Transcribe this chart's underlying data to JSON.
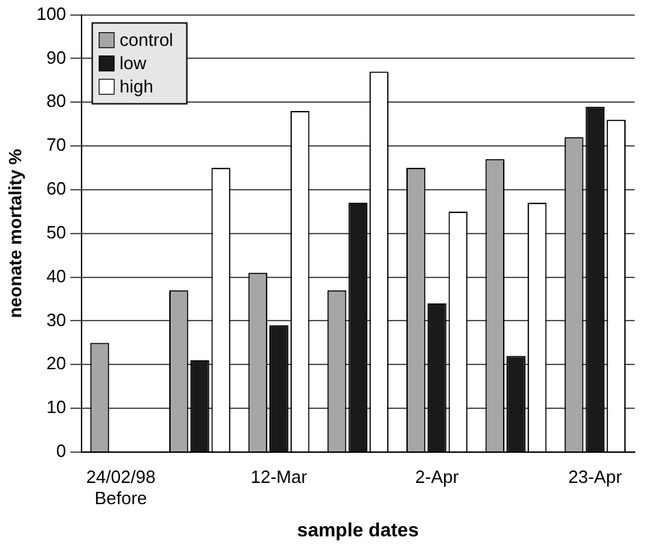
{
  "chart_data": {
    "type": "bar",
    "xlabel": "sample dates",
    "ylabel": "neonate mortality %",
    "categories": [
      "24/02/98\nBefore",
      null,
      "12-Mar",
      null,
      "2-Apr",
      null,
      "23-Apr"
    ],
    "series": [
      {
        "name": "control",
        "color": "#a6a6a6",
        "values": [
          25,
          37,
          41,
          37,
          65,
          67,
          72
        ]
      },
      {
        "name": "low",
        "color": "#1a1a1a",
        "values": [
          null,
          21,
          29,
          57,
          34,
          22,
          79
        ]
      },
      {
        "name": "high",
        "color": "#ffffff",
        "values": [
          null,
          65,
          78,
          87,
          55,
          57,
          76
        ]
      }
    ],
    "ylim": [
      0,
      100
    ],
    "yticks": [
      0,
      10,
      20,
      30,
      40,
      50,
      60,
      70,
      80,
      90,
      100
    ],
    "grid": "y",
    "legend": "top left"
  }
}
